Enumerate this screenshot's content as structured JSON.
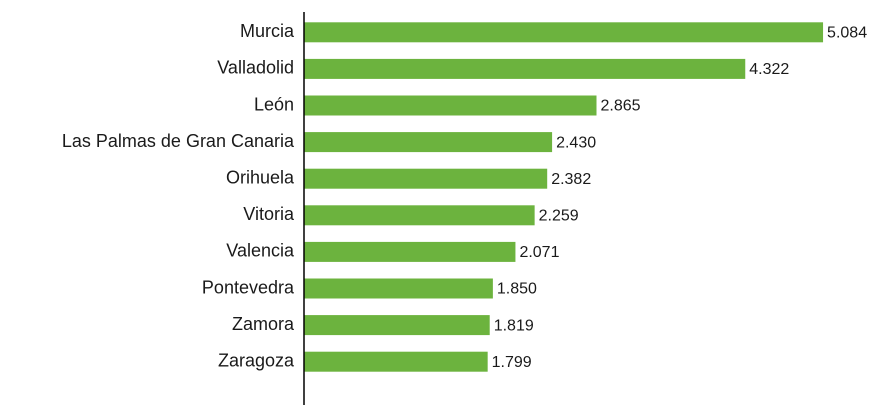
{
  "chart_data": {
    "type": "bar",
    "orientation": "horizontal",
    "categories": [
      "Murcia",
      "Valladolid",
      "León",
      "Las Palmas de Gran Canaria",
      "Orihuela",
      "Vitoria",
      "Valencia",
      "Pontevedra",
      "Zamora",
      "Zaragoza"
    ],
    "values": [
      5084,
      4322,
      2865,
      2430,
      2382,
      2259,
      2071,
      1850,
      1819,
      1799
    ],
    "value_labels": [
      "5.084",
      "4.322",
      "2.865",
      "2.430",
      "2.382",
      "2.259",
      "2.071",
      "1.850",
      "1.819",
      "1.799"
    ],
    "color": "#6cb33e",
    "xlim": [
      0,
      5250
    ]
  }
}
